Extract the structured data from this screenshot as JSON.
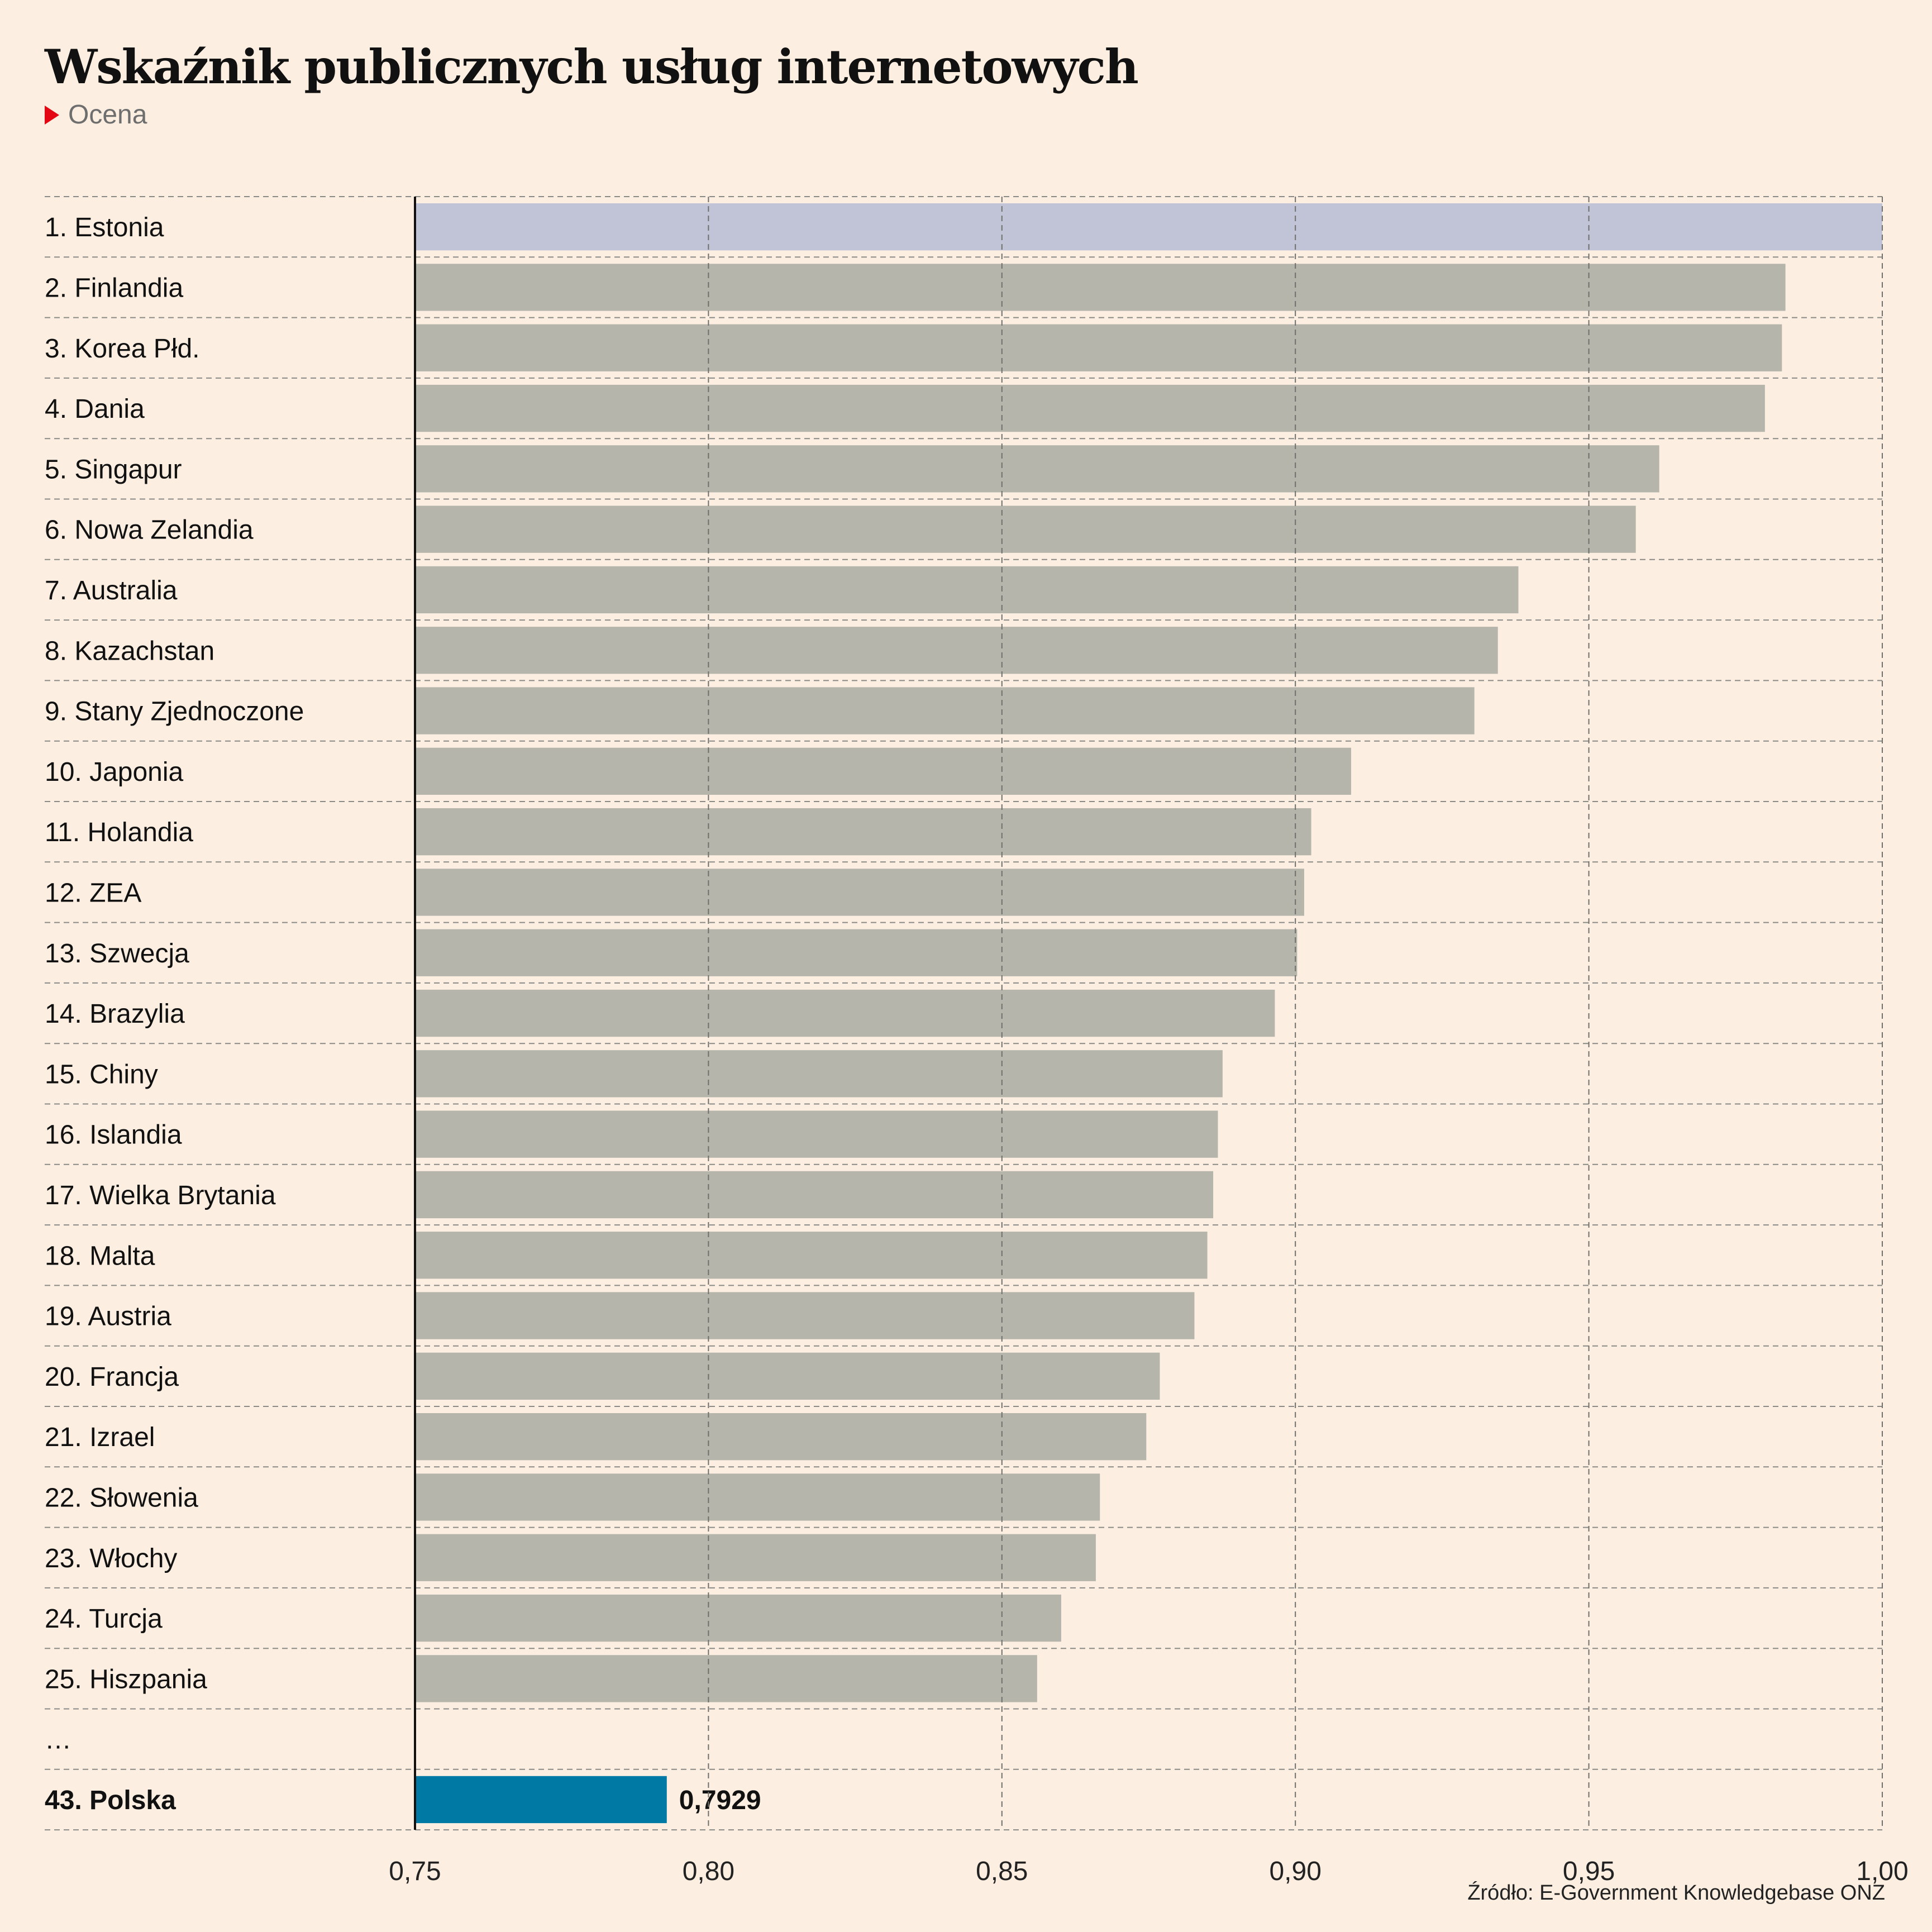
{
  "title": "Wskaźnik publicznych usług internetowych",
  "subtitle": "Ocena",
  "source": "Źródło: E-Government Knowledgebase ONZ",
  "colors": {
    "background": "#fcefe1",
    "bar": "#b5b5ac",
    "highlight_first": "#c0c4d6",
    "highlight_poland": "#0079a5",
    "marker": "#e30613"
  },
  "chart_data": {
    "type": "bar",
    "orientation": "horizontal",
    "categories": [
      "1. Estonia",
      "2. Finlandia",
      "3. Korea Płd.",
      "4. Dania",
      "5. Singapur",
      "6. Nowa Zelandia",
      "7. Australia",
      "8. Kazachstan",
      "9. Stany Zjednoczone",
      "10. Japonia",
      "11. Holandia",
      "12. ZEA",
      "13. Szwecja",
      "14. Brazylia",
      "15. Chiny",
      "16. Islandia",
      "17. Wielka Brytania",
      "18. Malta",
      "19. Austria",
      "20. Francja",
      "21. Izrael",
      "22. Słowenia",
      "23. Włochy",
      "24. Turcja",
      "25. Hiszpania",
      "…",
      "43. Polska"
    ],
    "values": [
      1.0,
      0.9835,
      0.9829,
      0.98,
      0.962,
      0.958,
      0.938,
      0.9345,
      0.9305,
      0.9095,
      0.9027,
      0.9015,
      0.9003,
      0.8965,
      0.8876,
      0.8868,
      0.886,
      0.885,
      0.8828,
      0.8769,
      0.8746,
      0.8667,
      0.866,
      0.8601,
      0.856,
      null,
      0.7929
    ],
    "highlight": [
      "1. Estonia",
      "43. Polska"
    ],
    "value_labels": {
      "43. Polska": "0,7929"
    },
    "xlim": [
      0.75,
      1.0
    ],
    "xticks": [
      "0,75",
      "0,80",
      "0,85",
      "0,90",
      "0,95",
      "1,00"
    ],
    "xtick_values": [
      0.75,
      0.8,
      0.85,
      0.9,
      0.95,
      1.0
    ],
    "grid": true,
    "xlabel": "",
    "ylabel": ""
  }
}
